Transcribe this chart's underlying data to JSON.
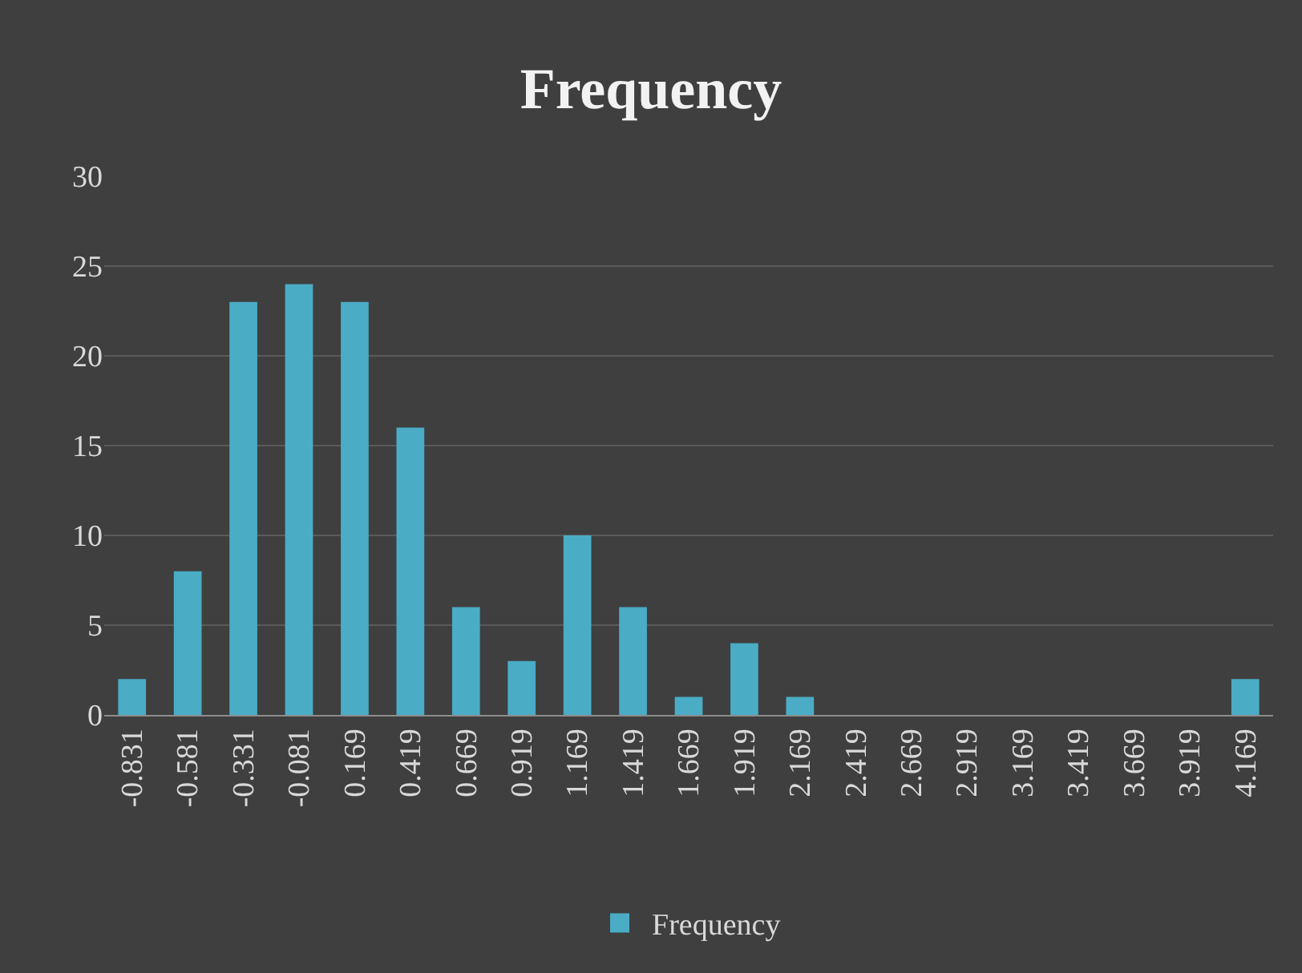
{
  "chart_data": {
    "type": "bar",
    "title": "Frequency",
    "categories": [
      "-0.831",
      "-0.581",
      "-0.331",
      "-0.081",
      "0.169",
      "0.419",
      "0.669",
      "0.919",
      "1.169",
      "1.419",
      "1.669",
      "1.919",
      "2.169",
      "2.419",
      "2.669",
      "2.919",
      "3.169",
      "3.419",
      "3.669",
      "3.919",
      "4.169"
    ],
    "series": [
      {
        "name": "Frequency",
        "color": "#4bacc6",
        "values": [
          2,
          8,
          23,
          24,
          23,
          16,
          6,
          3,
          10,
          6,
          1,
          4,
          1,
          0,
          0,
          0,
          0,
          0,
          0,
          0,
          2
        ]
      }
    ],
    "ylim": [
      0,
      30
    ],
    "yticks": [
      0,
      5,
      10,
      15,
      20,
      25,
      30
    ],
    "grid": "y",
    "legend": "bottom"
  }
}
